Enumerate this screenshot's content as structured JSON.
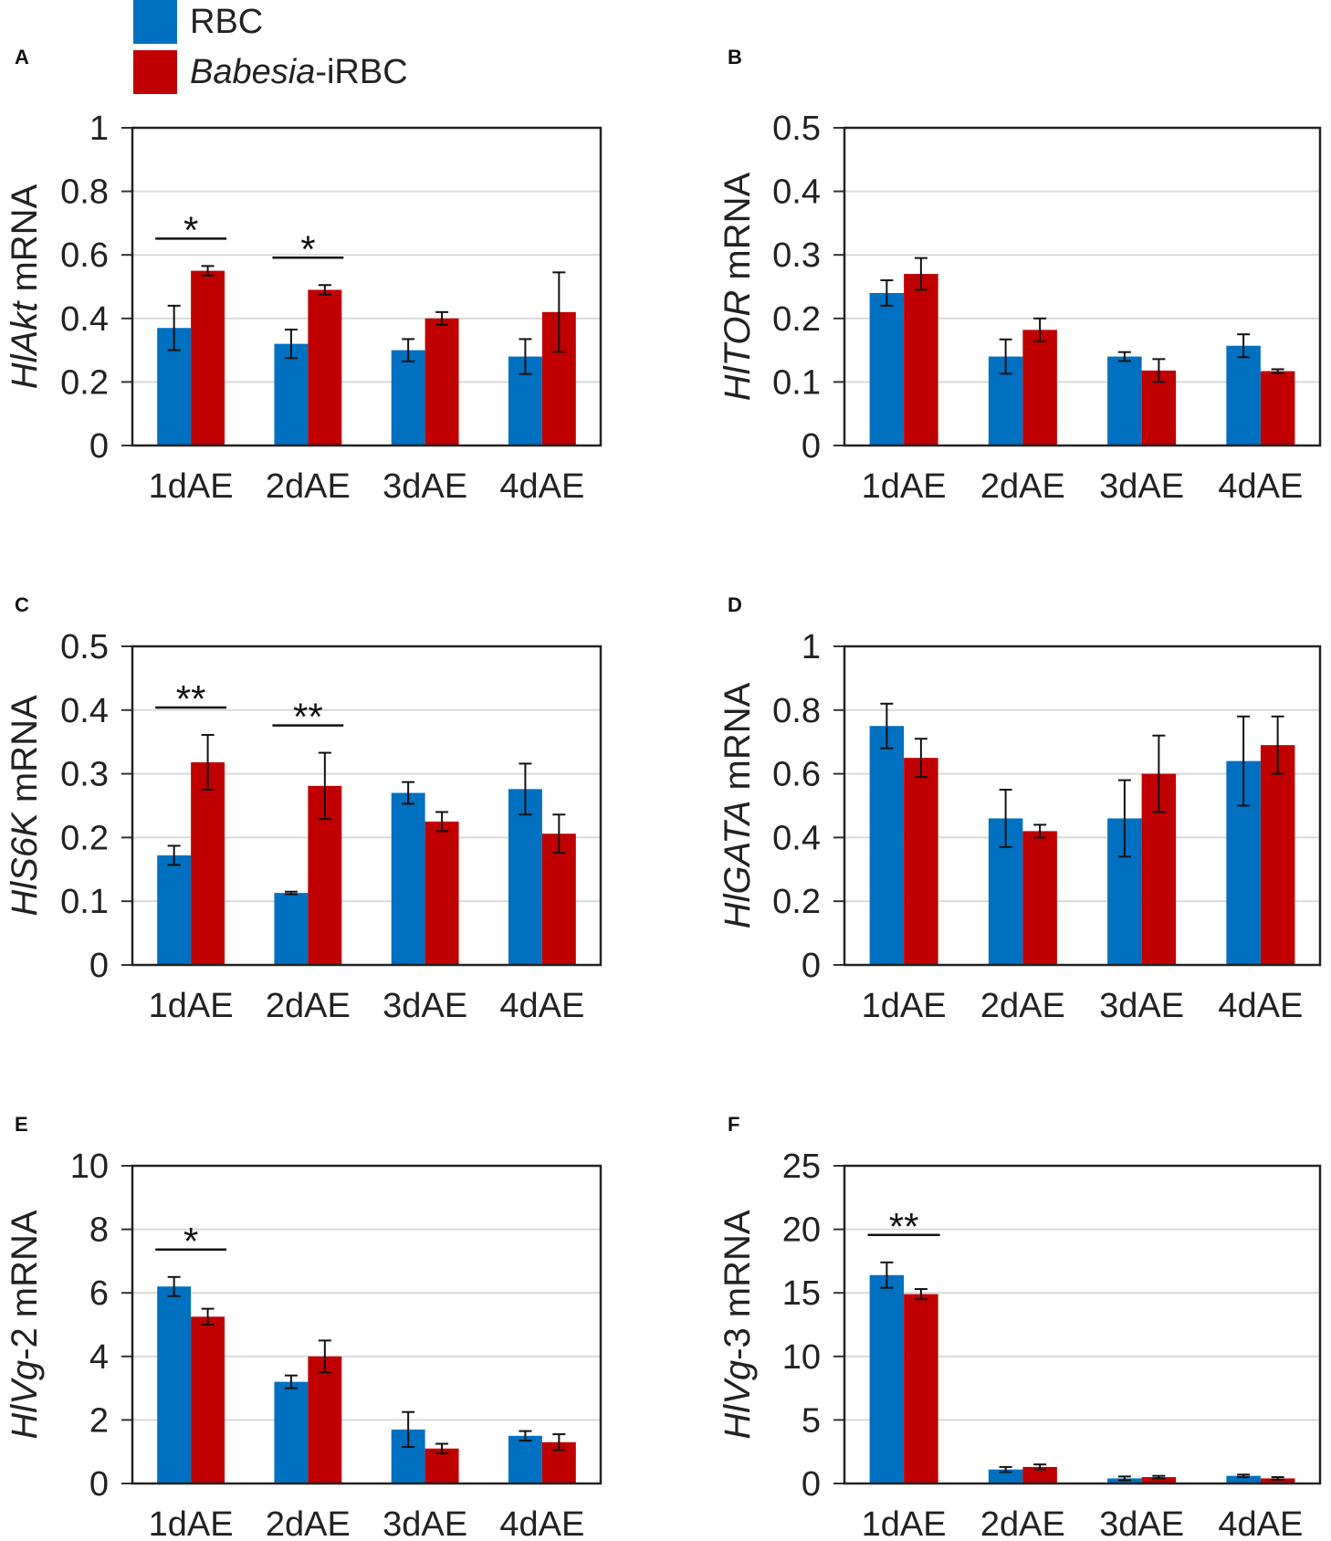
{
  "legend": {
    "items": [
      {
        "label": "RBC",
        "italic": "",
        "rest": "RBC",
        "color": "#0070C0"
      },
      {
        "label": "Babesia-iRBC",
        "italic": "Babesia",
        "rest": "-iRBC",
        "color": "#C00000"
      }
    ]
  },
  "chart_data": [
    {
      "panel": "A",
      "type": "bar",
      "gene": "Hl",
      "gene_italic": "HlAkt",
      "ylabel_rest": " mRNA",
      "ylim": [
        0,
        1
      ],
      "yticks": [
        0,
        0.2,
        0.4,
        0.6,
        0.8,
        1
      ],
      "ytick_labels": [
        "0",
        "0.2",
        "0.4",
        "0.6",
        "0.8",
        "1"
      ],
      "categories": [
        "1dAE",
        "2dAE",
        "3dAE",
        "4dAE"
      ],
      "series": [
        {
          "name": "RBC",
          "values": [
            0.37,
            0.32,
            0.3,
            0.28
          ],
          "errors": [
            0.07,
            0.045,
            0.035,
            0.055
          ]
        },
        {
          "name": "Babesia-iRBC",
          "values": [
            0.55,
            0.49,
            0.4,
            0.42
          ],
          "errors": [
            0.015,
            0.015,
            0.02,
            0.125
          ]
        }
      ],
      "annotations": [
        {
          "category": 0,
          "text": "*"
        },
        {
          "category": 1,
          "text": "*"
        }
      ]
    },
    {
      "panel": "B",
      "type": "bar",
      "gene_italic": "HlTOR",
      "ylabel_rest": " mRNA",
      "ylim": [
        0,
        0.5
      ],
      "yticks": [
        0,
        0.1,
        0.2,
        0.3,
        0.4,
        0.5
      ],
      "ytick_labels": [
        "0",
        "0.1",
        "0.2",
        "0.3",
        "0.4",
        "0.5"
      ],
      "categories": [
        "1dAE",
        "2dAE",
        "3dAE",
        "4dAE"
      ],
      "series": [
        {
          "name": "RBC",
          "values": [
            0.24,
            0.14,
            0.14,
            0.157
          ],
          "errors": [
            0.02,
            0.027,
            0.007,
            0.018
          ]
        },
        {
          "name": "Babesia-iRBC",
          "values": [
            0.27,
            0.182,
            0.118,
            0.117
          ],
          "errors": [
            0.025,
            0.018,
            0.018,
            0.003
          ]
        }
      ],
      "annotations": []
    },
    {
      "panel": "C",
      "type": "bar",
      "gene_italic": "HlS6K",
      "ylabel_rest": " mRNA",
      "ylim": [
        0,
        0.5
      ],
      "yticks": [
        0,
        0.1,
        0.2,
        0.3,
        0.4,
        0.5
      ],
      "ytick_labels": [
        "0",
        "0.1",
        "0.2",
        "0.3",
        "0.4",
        "0.5"
      ],
      "categories": [
        "1dAE",
        "2dAE",
        "3dAE",
        "4dAE"
      ],
      "series": [
        {
          "name": "RBC",
          "values": [
            0.172,
            0.113,
            0.27,
            0.276
          ],
          "errors": [
            0.015,
            0.002,
            0.017,
            0.04
          ]
        },
        {
          "name": "Babesia-iRBC",
          "values": [
            0.318,
            0.281,
            0.225,
            0.206
          ],
          "errors": [
            0.043,
            0.052,
            0.015,
            0.03
          ]
        }
      ],
      "annotations": [
        {
          "category": 0,
          "text": "**"
        },
        {
          "category": 1,
          "text": "**"
        }
      ]
    },
    {
      "panel": "D",
      "type": "bar",
      "gene_italic": "HlGATA",
      "ylabel_rest": " mRNA",
      "ylim": [
        0,
        1
      ],
      "yticks": [
        0,
        0.2,
        0.4,
        0.6,
        0.8,
        1
      ],
      "ytick_labels": [
        "0",
        "0.2",
        "0.4",
        "0.6",
        "0.8",
        "1"
      ],
      "categories": [
        "1dAE",
        "2dAE",
        "3dAE",
        "4dAE"
      ],
      "series": [
        {
          "name": "RBC",
          "values": [
            0.75,
            0.46,
            0.46,
            0.64
          ],
          "errors": [
            0.07,
            0.09,
            0.12,
            0.14
          ]
        },
        {
          "name": "Babesia-iRBC",
          "values": [
            0.65,
            0.42,
            0.6,
            0.69
          ],
          "errors": [
            0.06,
            0.02,
            0.12,
            0.09
          ]
        }
      ],
      "annotations": []
    },
    {
      "panel": "E",
      "type": "bar",
      "gene_italic": "HlVg",
      "ylabel_rest": "-2 mRNA",
      "ylim": [
        0,
        10
      ],
      "yticks": [
        0,
        2,
        4,
        6,
        8,
        10
      ],
      "ytick_labels": [
        "0",
        "2",
        "4",
        "6",
        "8",
        "10"
      ],
      "categories": [
        "1dAE",
        "2dAE",
        "3dAE",
        "4dAE"
      ],
      "series": [
        {
          "name": "RBC",
          "values": [
            6.2,
            3.2,
            1.7,
            1.5
          ],
          "errors": [
            0.3,
            0.2,
            0.55,
            0.15
          ]
        },
        {
          "name": "Babesia-iRBC",
          "values": [
            5.25,
            4.0,
            1.1,
            1.3
          ],
          "errors": [
            0.25,
            0.5,
            0.15,
            0.25
          ]
        }
      ],
      "annotations": [
        {
          "category": 0,
          "text": "*"
        }
      ]
    },
    {
      "panel": "F",
      "type": "bar",
      "gene_italic": "HlVg",
      "ylabel_rest": "-3 mRNA",
      "ylim": [
        0,
        25
      ],
      "yticks": [
        0,
        5,
        10,
        15,
        20,
        25
      ],
      "ytick_labels": [
        "0",
        "5",
        "10",
        "15",
        "20",
        "25"
      ],
      "categories": [
        "1dAE",
        "2dAE",
        "3dAE",
        "4dAE"
      ],
      "series": [
        {
          "name": "RBC",
          "values": [
            16.4,
            1.1,
            0.4,
            0.6
          ],
          "errors": [
            1.0,
            0.2,
            0.15,
            0.1
          ]
        },
        {
          "name": "Babesia-iRBC",
          "values": [
            14.9,
            1.3,
            0.5,
            0.4
          ],
          "errors": [
            0.4,
            0.2,
            0.1,
            0.1
          ]
        }
      ],
      "annotations": [
        {
          "category": 0,
          "text": "**"
        }
      ]
    }
  ]
}
